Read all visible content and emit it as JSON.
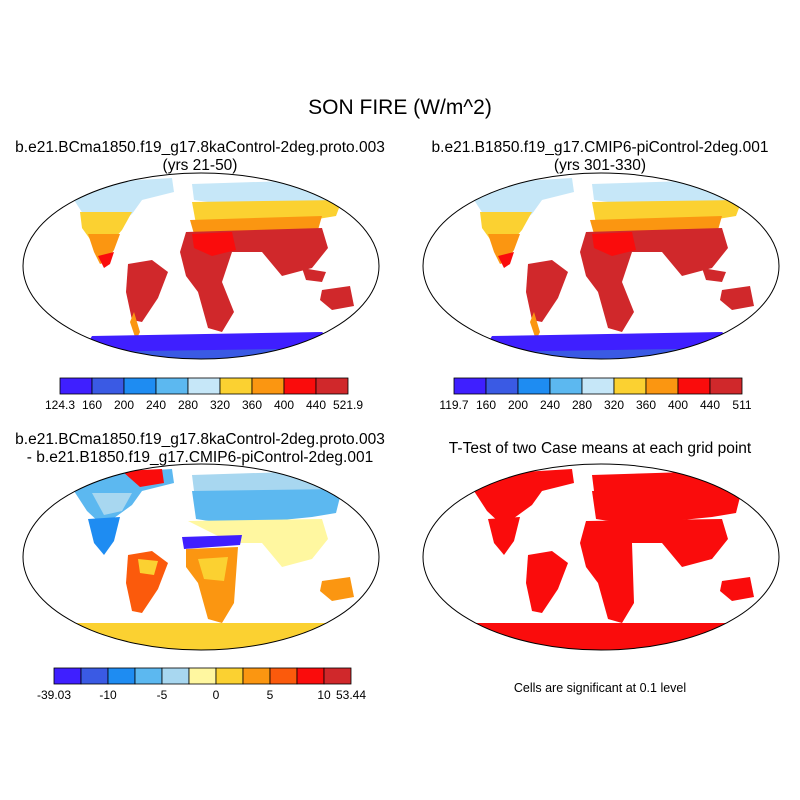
{
  "title": "SON FIRE (W/m^2)",
  "panels": [
    {
      "title_line1": "b.e21.BCma1850.f19_g17.8kaControl-2deg.proto.003",
      "title_line2": "(yrs 21-50)",
      "colorbar": {
        "colors": [
          "#3f1fff",
          "#3a5ae4",
          "#1e8cf2",
          "#5cb8f0",
          "#c6e7f8",
          "#fbd131",
          "#fb9611",
          "#fa0c0c",
          "#d0282b"
        ],
        "labels": [
          "124.3",
          "160",
          "200",
          "240",
          "280",
          "320",
          "360",
          "400",
          "440",
          "521.9"
        ]
      }
    },
    {
      "title_line1": "b.e21.B1850.f19_g17.CMIP6-piControl-2deg.001",
      "title_line2": "(yrs 301-330)",
      "colorbar": {
        "colors": [
          "#3f1fff",
          "#3a5ae4",
          "#1e8cf2",
          "#5cb8f0",
          "#c6e7f8",
          "#fbd131",
          "#fb9611",
          "#fa0c0c",
          "#d0282b"
        ],
        "labels": [
          "119.7",
          "160",
          "200",
          "240",
          "280",
          "320",
          "360",
          "400",
          "440",
          "511"
        ]
      }
    },
    {
      "title_line1": "b.e21.BCma1850.f19_g17.8kaControl-2deg.proto.003",
      "title_line2": "- b.e21.B1850.f19_g17.CMIP6-piControl-2deg.001",
      "colorbar": {
        "colors": [
          "#3f1fff",
          "#3a5ae4",
          "#1e8cf2",
          "#5cb8f0",
          "#a8d7f0",
          "#fff7a0",
          "#fbd131",
          "#fb9611",
          "#fb5a0c",
          "#fa0c0c",
          "#d0282b"
        ],
        "labels": [
          "-39.03",
          "-10",
          "-5",
          "0",
          "5",
          "10",
          "53.44"
        ]
      }
    },
    {
      "title_line1": "T-Test of two Case means at each grid point",
      "note": "Cells are significant at 0.1 level",
      "fill_color": "#fa0c0c"
    }
  ]
}
